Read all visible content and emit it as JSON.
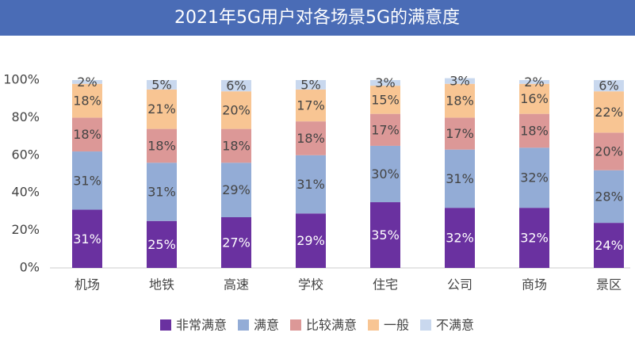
{
  "chart_data": {
    "type": "stacked_bar",
    "title": "2021年5G用户对各场景5G的满意度",
    "categories": [
      "机场",
      "地铁",
      "高速",
      "学校",
      "住宅",
      "公司",
      "商场",
      "景区"
    ],
    "series": [
      {
        "name": "非常满意",
        "color": "#6a31a0",
        "values": [
          31,
          25,
          27,
          29,
          35,
          32,
          32,
          24
        ],
        "value_labels": [
          "31%",
          "25%",
          "27%",
          "29%",
          "35%",
          "32%",
          "32%",
          "24%"
        ]
      },
      {
        "name": "满意",
        "color": "#93acd6",
        "values": [
          31,
          31,
          29,
          31,
          30,
          31,
          32,
          28
        ],
        "value_labels": [
          "31%",
          "31%",
          "29%",
          "31%",
          "30%",
          "31%",
          "32%",
          "28%"
        ]
      },
      {
        "name": "比较满意",
        "color": "#dc9897",
        "values": [
          18,
          18,
          18,
          18,
          17,
          17,
          18,
          20
        ],
        "value_labels": [
          "18%",
          "18%",
          "18%",
          "18%",
          "17%",
          "17%",
          "18%",
          "20%"
        ]
      },
      {
        "name": "一般",
        "color": "#f8c593",
        "values": [
          18,
          21,
          20,
          17,
          15,
          18,
          16,
          22
        ],
        "value_labels": [
          "18%",
          "21%",
          "20%",
          "17%",
          "15%",
          "18%",
          "16%",
          "22%"
        ]
      },
      {
        "name": "不满意",
        "color": "#c9d8ee",
        "values": [
          2,
          5,
          6,
          5,
          3,
          3,
          2,
          6
        ],
        "value_labels": [
          "2%",
          "5%",
          "6%",
          "5%",
          "3%",
          "3%",
          "2%",
          "6%"
        ]
      }
    ],
    "ylim": [
      0,
      100
    ],
    "yticks": [
      {
        "value": 0,
        "label": "0%"
      },
      {
        "value": 20,
        "label": "20%"
      },
      {
        "value": 40,
        "label": "40%"
      },
      {
        "value": 60,
        "label": "60%"
      },
      {
        "value": 80,
        "label": "80%"
      },
      {
        "value": 100,
        "label": "100%"
      }
    ],
    "grid": false,
    "legend": "bottom"
  }
}
